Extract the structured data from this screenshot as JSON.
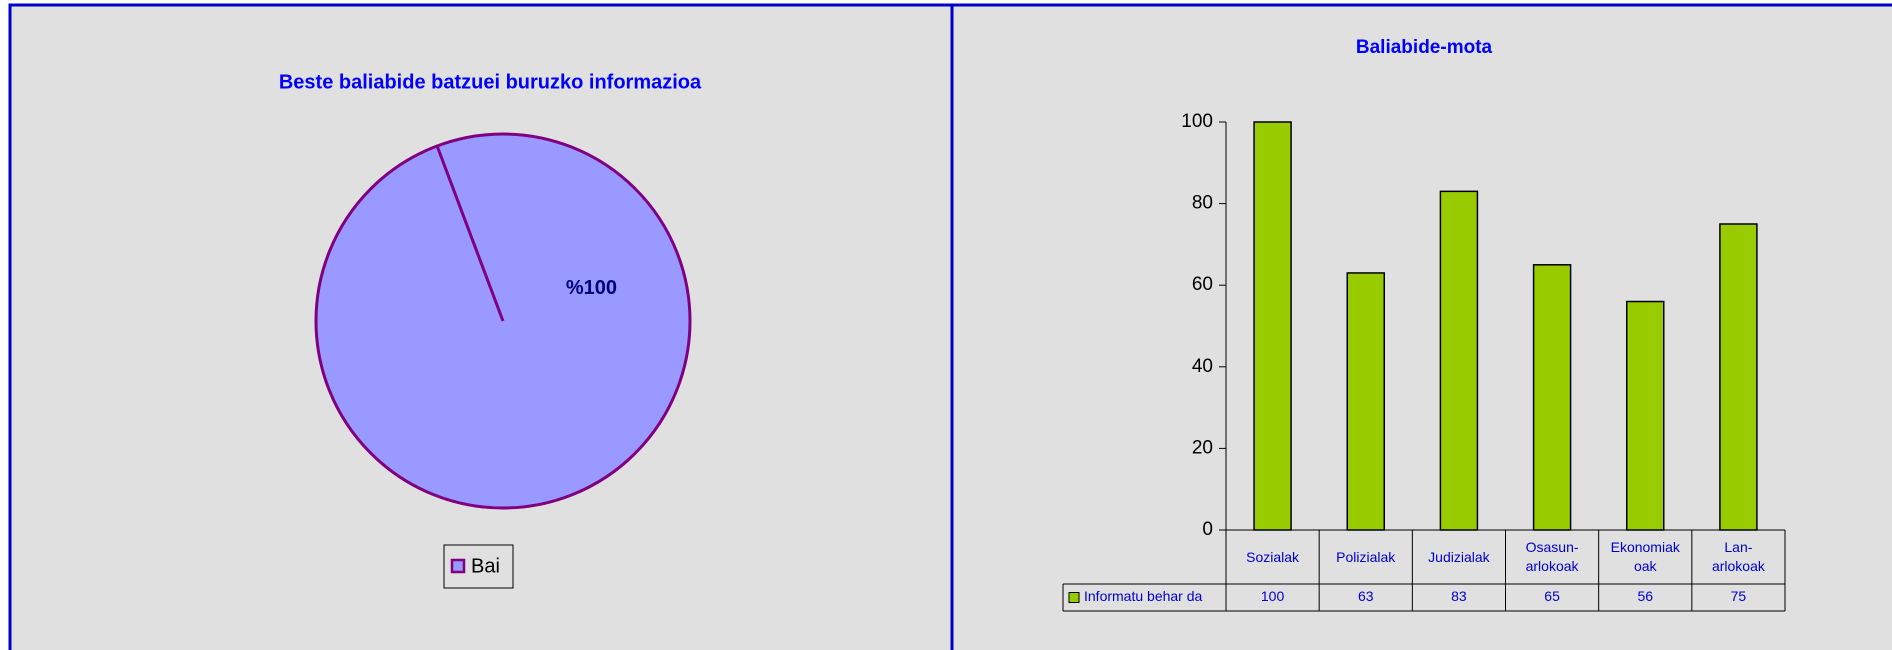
{
  "chart_data": [
    {
      "type": "pie",
      "title": "Beste baliabide batzuei buruzko informazioa",
      "categories": [
        "Bai"
      ],
      "values": [
        100
      ],
      "value_labels": [
        "%100"
      ],
      "colors": [
        "#9999ff"
      ],
      "legend": "bottom"
    },
    {
      "type": "bar",
      "title": "Baliabide-mota",
      "categories": [
        "Sozialak",
        "Polizialak",
        "Judizialak",
        "Osasun-arlokoak",
        "Ekonomiak oak",
        "Lan-arlokoak"
      ],
      "series": [
        {
          "name": "Informatu behar da",
          "color": "#99cc00",
          "values": [
            100,
            63,
            83,
            65,
            56,
            75
          ]
        }
      ],
      "ylim": [
        0,
        100
      ],
      "yticks": [
        0,
        20,
        40,
        60,
        80,
        100
      ]
    }
  ]
}
